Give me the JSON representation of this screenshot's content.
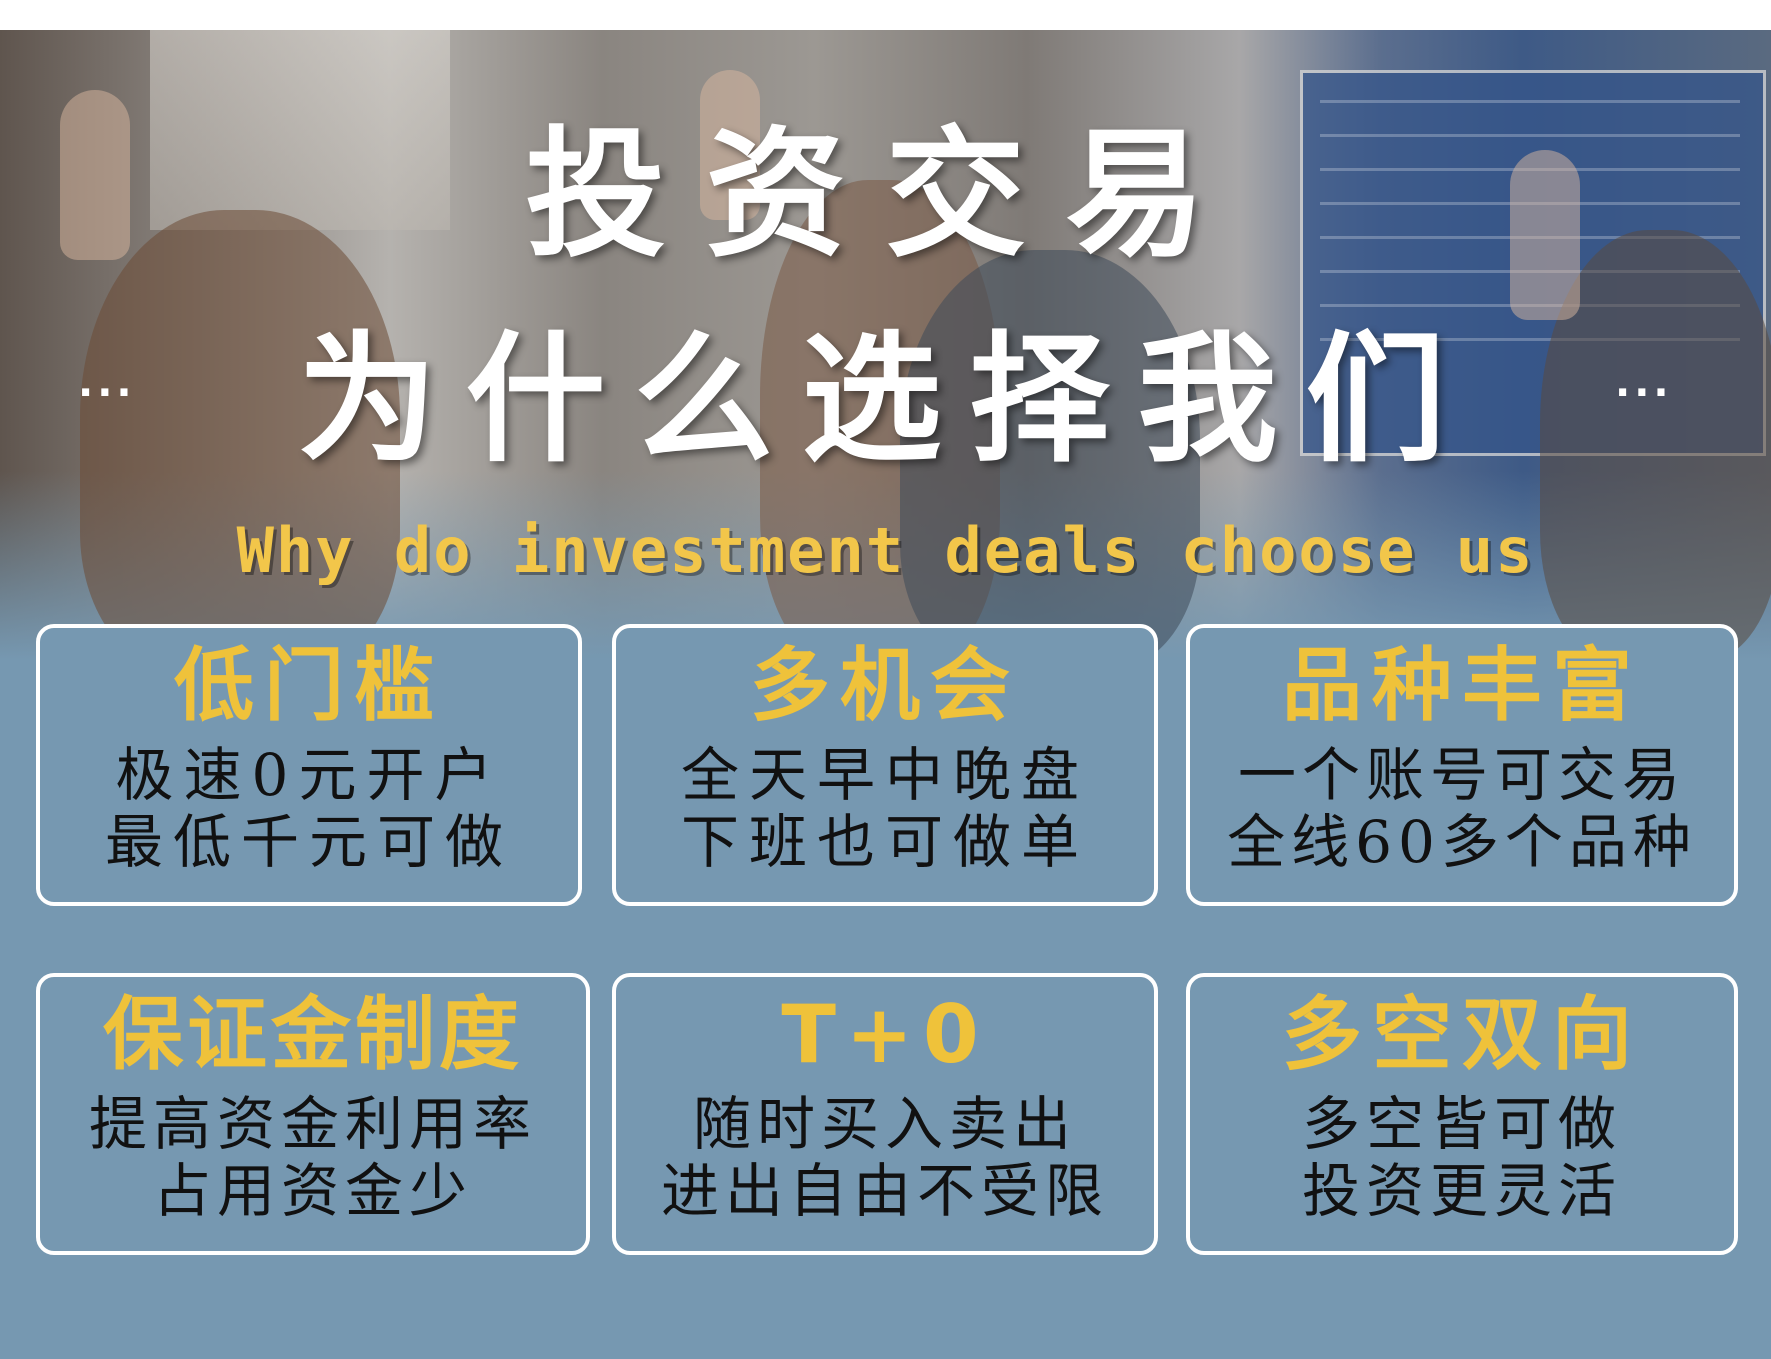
{
  "header": {
    "title_line1": "投资交易",
    "title_line2": "为什么选择我们",
    "subtitle": "Why do investment deals choose us",
    "left_dots": "...",
    "right_dots": "..."
  },
  "colors": {
    "background": "#7698b1",
    "card_border": "#ffffff",
    "card_title": "#efc23a",
    "card_text": "#111111",
    "subtitle": "#f2c64a"
  },
  "cards": [
    {
      "title": "低门槛",
      "line1": "极速0元开户",
      "line2": "最低千元可做"
    },
    {
      "title": "多机会",
      "line1": "全天早中晚盘",
      "line2": "下班也可做单"
    },
    {
      "title": "品种丰富",
      "line1": "一个账号可交易",
      "line2": "全线60多个品种"
    },
    {
      "title": "保证金制度",
      "line1": "提高资金利用率",
      "line2": "占用资金少"
    },
    {
      "title": "T+0",
      "line1": "随时买入卖出",
      "line2": "进出自由不受限"
    },
    {
      "title": "多空双向",
      "line1": "多空皆可做",
      "line2": "投资更灵活"
    }
  ]
}
